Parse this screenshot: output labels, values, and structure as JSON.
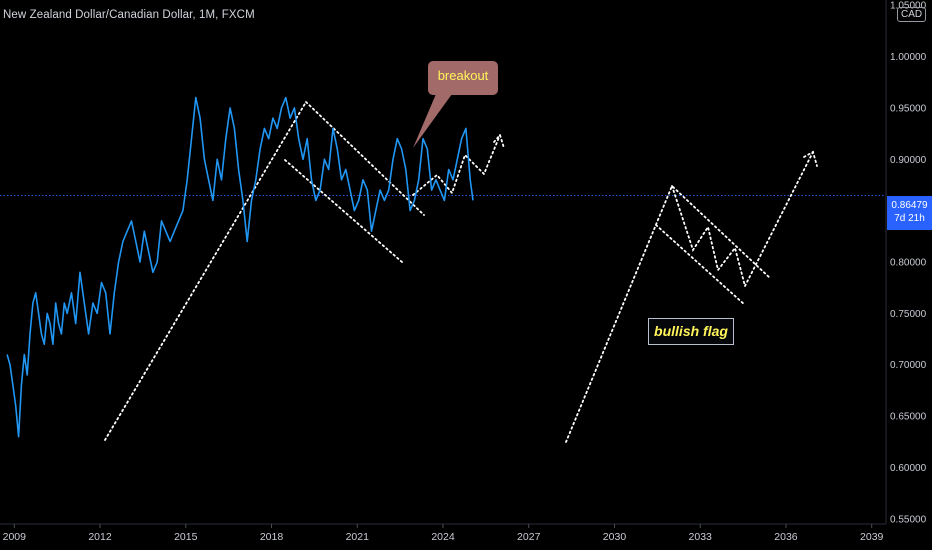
{
  "header": {
    "symbol_title": "New Zealand Dollar/Canadian Dollar, 1M, FXCM",
    "currency_badge": "CAD"
  },
  "price_tag": {
    "price": "0.86479",
    "countdown": "7d 21h"
  },
  "colors": {
    "series": "#2196f3",
    "annotation": "#ffffff",
    "callout_bg": "#a36a6a",
    "label_text": "#fff45a",
    "price_tag_bg": "#2962ff",
    "current_line": "#2962ff"
  },
  "chart_data": {
    "type": "line",
    "x_axis": {
      "min": 2008.5,
      "max": 2039.5,
      "ticks": [
        2009,
        2012,
        2015,
        2018,
        2021,
        2024,
        2027,
        2030,
        2033,
        2036,
        2039
      ],
      "tick_labels": [
        "2009",
        "2012",
        "2015",
        "2018",
        "2021",
        "2024",
        "2027",
        "2030",
        "2033",
        "2036",
        "2039"
      ]
    },
    "y_axis": {
      "min": 0.545,
      "max": 1.055,
      "ticks": [
        0.55,
        0.6,
        0.65,
        0.7,
        0.75,
        0.8,
        0.85,
        0.9,
        0.95,
        1.0,
        1.05
      ],
      "tick_labels": [
        "0.55000",
        "0.60000",
        "0.65000",
        "0.70000",
        "0.75000",
        "0.80000",
        "0.85000",
        "0.90000",
        "0.95000",
        "1.00000",
        "1.05000"
      ]
    },
    "current_price": 0.86479,
    "series": [
      {
        "values": [
          [
            2008.75,
            0.71
          ],
          [
            2008.85,
            0.7
          ],
          [
            2008.95,
            0.68
          ],
          [
            2009.05,
            0.66
          ],
          [
            2009.15,
            0.63
          ],
          [
            2009.25,
            0.68
          ],
          [
            2009.35,
            0.71
          ],
          [
            2009.45,
            0.69
          ],
          [
            2009.55,
            0.73
          ],
          [
            2009.65,
            0.76
          ],
          [
            2009.75,
            0.77
          ],
          [
            2009.85,
            0.75
          ],
          [
            2009.95,
            0.73
          ],
          [
            2010.05,
            0.72
          ],
          [
            2010.15,
            0.75
          ],
          [
            2010.25,
            0.74
          ],
          [
            2010.35,
            0.72
          ],
          [
            2010.45,
            0.76
          ],
          [
            2010.55,
            0.74
          ],
          [
            2010.65,
            0.73
          ],
          [
            2010.75,
            0.76
          ],
          [
            2010.85,
            0.75
          ],
          [
            2011.0,
            0.77
          ],
          [
            2011.15,
            0.74
          ],
          [
            2011.3,
            0.79
          ],
          [
            2011.45,
            0.76
          ],
          [
            2011.6,
            0.73
          ],
          [
            2011.75,
            0.76
          ],
          [
            2011.9,
            0.75
          ],
          [
            2012.05,
            0.78
          ],
          [
            2012.2,
            0.77
          ],
          [
            2012.35,
            0.73
          ],
          [
            2012.5,
            0.77
          ],
          [
            2012.65,
            0.8
          ],
          [
            2012.8,
            0.82
          ],
          [
            2012.95,
            0.83
          ],
          [
            2013.1,
            0.84
          ],
          [
            2013.25,
            0.82
          ],
          [
            2013.4,
            0.8
          ],
          [
            2013.55,
            0.83
          ],
          [
            2013.7,
            0.81
          ],
          [
            2013.85,
            0.79
          ],
          [
            2014.0,
            0.8
          ],
          [
            2014.15,
            0.84
          ],
          [
            2014.3,
            0.83
          ],
          [
            2014.45,
            0.82
          ],
          [
            2014.6,
            0.83
          ],
          [
            2014.75,
            0.84
          ],
          [
            2014.9,
            0.85
          ],
          [
            2015.05,
            0.88
          ],
          [
            2015.2,
            0.92
          ],
          [
            2015.35,
            0.96
          ],
          [
            2015.5,
            0.94
          ],
          [
            2015.65,
            0.9
          ],
          [
            2015.8,
            0.88
          ],
          [
            2015.95,
            0.86
          ],
          [
            2016.1,
            0.9
          ],
          [
            2016.25,
            0.88
          ],
          [
            2016.4,
            0.92
          ],
          [
            2016.55,
            0.95
          ],
          [
            2016.7,
            0.93
          ],
          [
            2016.85,
            0.89
          ],
          [
            2017.0,
            0.86
          ],
          [
            2017.15,
            0.82
          ],
          [
            2017.3,
            0.86
          ],
          [
            2017.45,
            0.88
          ],
          [
            2017.6,
            0.91
          ],
          [
            2017.75,
            0.93
          ],
          [
            2017.9,
            0.92
          ],
          [
            2018.05,
            0.94
          ],
          [
            2018.2,
            0.93
          ],
          [
            2018.35,
            0.95
          ],
          [
            2018.5,
            0.96
          ],
          [
            2018.65,
            0.94
          ],
          [
            2018.8,
            0.95
          ],
          [
            2018.95,
            0.92
          ],
          [
            2019.1,
            0.9
          ],
          [
            2019.25,
            0.92
          ],
          [
            2019.4,
            0.88
          ],
          [
            2019.55,
            0.86
          ],
          [
            2019.7,
            0.87
          ],
          [
            2019.85,
            0.9
          ],
          [
            2020.0,
            0.89
          ],
          [
            2020.15,
            0.93
          ],
          [
            2020.3,
            0.91
          ],
          [
            2020.45,
            0.88
          ],
          [
            2020.6,
            0.89
          ],
          [
            2020.75,
            0.87
          ],
          [
            2020.9,
            0.85
          ],
          [
            2021.05,
            0.86
          ],
          [
            2021.2,
            0.88
          ],
          [
            2021.35,
            0.87
          ],
          [
            2021.5,
            0.83
          ],
          [
            2021.65,
            0.85
          ],
          [
            2021.8,
            0.87
          ],
          [
            2021.95,
            0.86
          ],
          [
            2022.1,
            0.87
          ],
          [
            2022.25,
            0.9
          ],
          [
            2022.4,
            0.92
          ],
          [
            2022.55,
            0.91
          ],
          [
            2022.7,
            0.89
          ],
          [
            2022.85,
            0.85
          ],
          [
            2023.0,
            0.86
          ],
          [
            2023.15,
            0.88
          ],
          [
            2023.3,
            0.92
          ],
          [
            2023.45,
            0.91
          ],
          [
            2023.6,
            0.87
          ],
          [
            2023.75,
            0.88
          ],
          [
            2023.9,
            0.87
          ],
          [
            2024.05,
            0.86
          ],
          [
            2024.2,
            0.89
          ],
          [
            2024.35,
            0.88
          ],
          [
            2024.5,
            0.9
          ],
          [
            2024.65,
            0.92
          ],
          [
            2024.8,
            0.93
          ],
          [
            2024.95,
            0.88
          ],
          [
            2025.05,
            0.86
          ]
        ]
      }
    ],
    "annotations": {
      "callout": "breakout",
      "flag_label": "bullish flag"
    }
  }
}
